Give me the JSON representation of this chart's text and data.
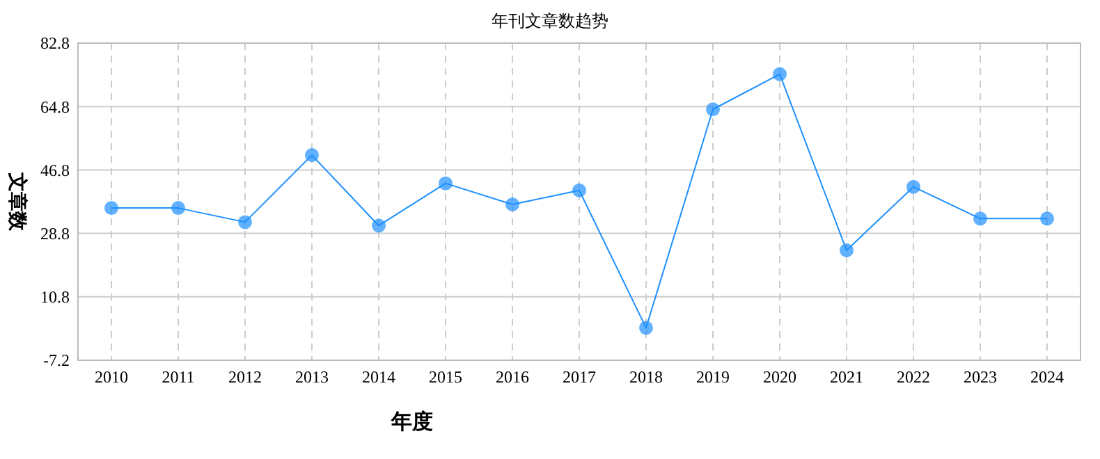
{
  "chart_data": {
    "type": "line",
    "title": "年刊文章数趋势",
    "xlabel": "年度",
    "ylabel": "文章数",
    "categories": [
      "2010",
      "2011",
      "2012",
      "2013",
      "2014",
      "2015",
      "2016",
      "2017",
      "2018",
      "2019",
      "2020",
      "2021",
      "2022",
      "2023",
      "2024"
    ],
    "series": [
      {
        "color": "#1e90ff",
        "values": [
          36,
          36,
          32,
          51,
          31,
          43,
          37,
          41,
          2,
          64,
          74,
          24,
          42,
          33,
          33
        ]
      }
    ],
    "ylim": [
      -7.2,
      82.8
    ],
    "yticks": [
      -7.2,
      10.8,
      28.8,
      46.8,
      64.8,
      82.8
    ],
    "grid": true,
    "marker": "circle",
    "line_style": "solid"
  }
}
